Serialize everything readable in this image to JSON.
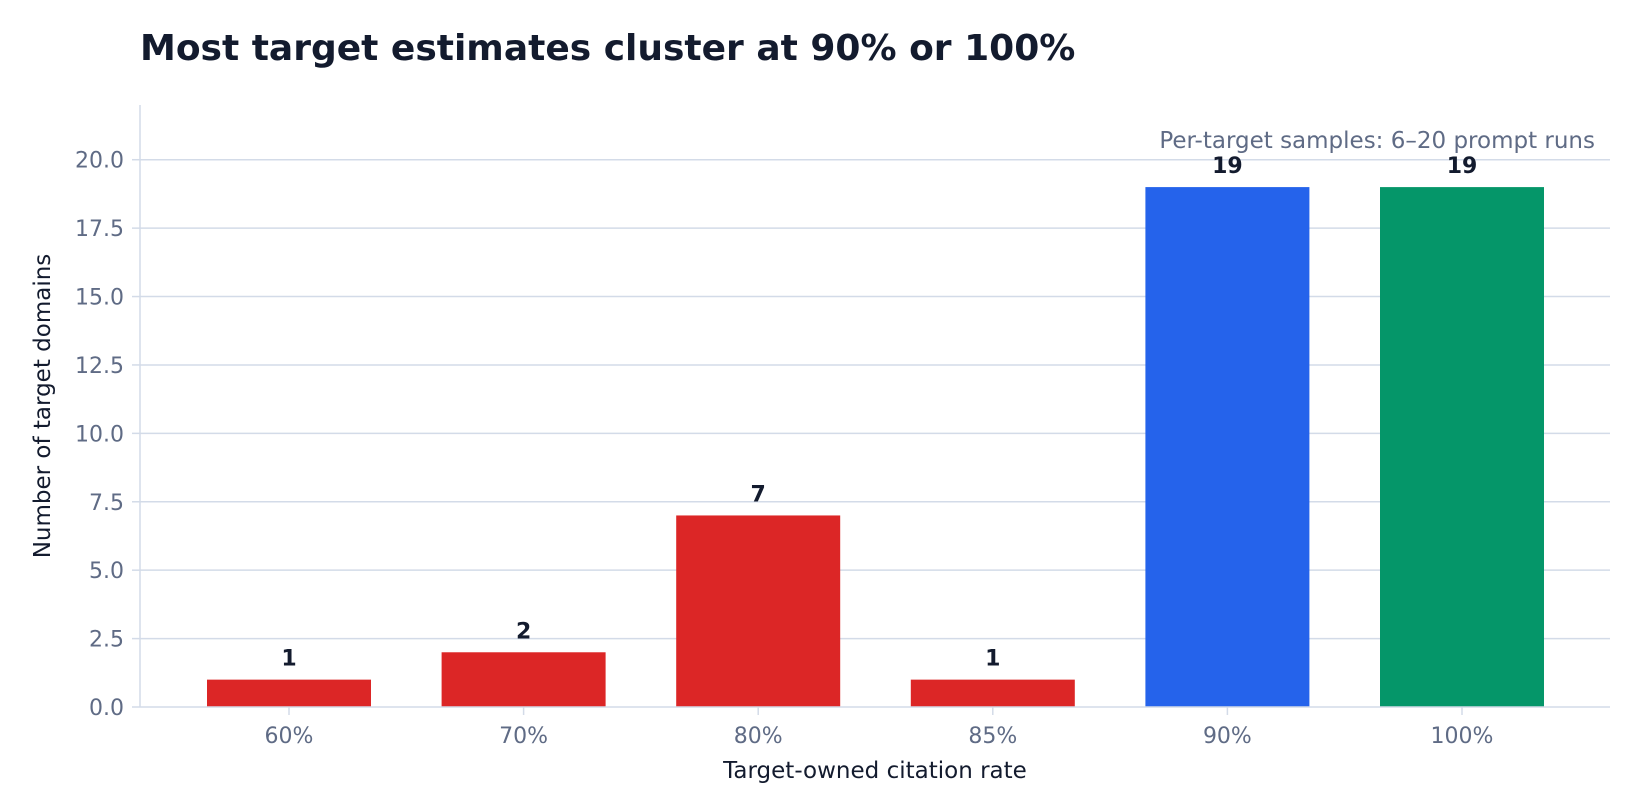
{
  "chart_data": {
    "type": "bar",
    "title": "Most target estimates cluster at 90% or 100%",
    "xlabel": "Target-owned citation rate",
    "ylabel": "Number of target domains",
    "annotation": "Per-target samples: 6–20 prompt runs",
    "categories": [
      "60%",
      "70%",
      "80%",
      "85%",
      "90%",
      "100%"
    ],
    "values": [
      1,
      2,
      7,
      1,
      19,
      19
    ],
    "data_labels": [
      "1",
      "2",
      "7",
      "1",
      "19",
      "19"
    ],
    "bar_colors": [
      "#dc2626",
      "#dc2626",
      "#dc2626",
      "#dc2626",
      "#2563eb",
      "#059669"
    ],
    "ylim": [
      0,
      22
    ],
    "yticks": [
      0,
      2.5,
      5,
      7.5,
      10,
      12.5,
      15,
      17.5,
      20
    ],
    "ytick_labels": [
      "0.0",
      "2.5",
      "5.0",
      "7.5",
      "10.0",
      "12.5",
      "15.0",
      "17.5",
      "20.0"
    ],
    "grid": true,
    "legend": "none"
  }
}
